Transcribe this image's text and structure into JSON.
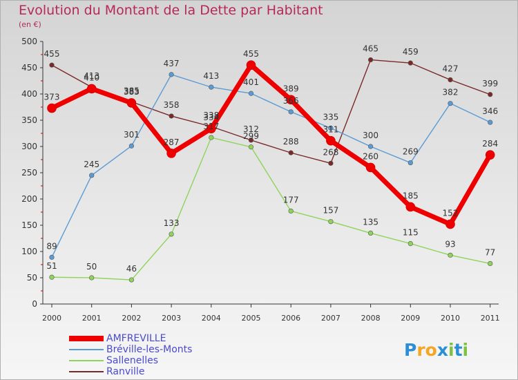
{
  "header": {
    "title": "Evolution du Montant de la Dette par Habitant",
    "subtitle": "(en €)"
  },
  "logo": {
    "letters": [
      "P",
      "r",
      "o",
      "x",
      "i",
      "t",
      "i"
    ],
    "colors": [
      "#2c8fd6",
      "#f5a623",
      "#f5a623",
      "#2c8fd6",
      "#7cc242",
      "#2c8fd6",
      "#7cc242"
    ]
  },
  "chart_data": {
    "type": "line",
    "title": "Evolution du Montant de la Dette par Habitant",
    "ylabel": "(en €)",
    "x": [
      "2000",
      "2001",
      "2002",
      "2003",
      "2004",
      "2005",
      "2006",
      "2007",
      "2008",
      "2009",
      "2010",
      "2011"
    ],
    "yticks": [
      "0",
      "50",
      "100",
      "150",
      "200",
      "250",
      "300",
      "350",
      "400",
      "450",
      "500"
    ],
    "ylim": [
      0,
      500
    ],
    "grid": false,
    "legend": "bottom-left",
    "series": [
      {
        "name": "AMFREVILLE",
        "color": "#ee0000",
        "values": [
          373,
          410,
          383,
          287,
          334,
          455,
          389,
          311,
          260,
          185,
          152,
          284
        ]
      },
      {
        "name": "Bréville-les-Monts",
        "color": "#5b9bd5",
        "values": [
          89,
          245,
          301,
          437,
          413,
          401,
          366,
          335,
          300,
          269,
          382,
          346
        ]
      },
      {
        "name": "Sallenelles",
        "color": "#8fd45a",
        "values": [
          51,
          50,
          46,
          133,
          317,
          299,
          177,
          157,
          135,
          115,
          93,
          77
        ]
      },
      {
        "name": "Ranville",
        "color": "#7a2828",
        "values": [
          455,
          413,
          385,
          358,
          338,
          312,
          288,
          268,
          465,
          459,
          427,
          399
        ]
      }
    ]
  }
}
